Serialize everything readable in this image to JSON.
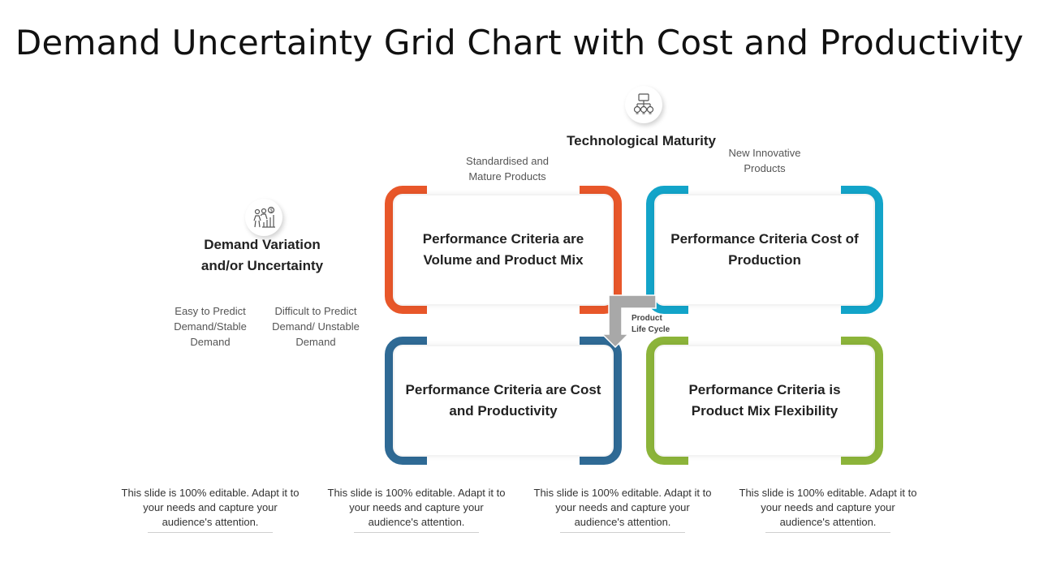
{
  "title": "Demand Uncertainty Grid Chart with Cost and Productivity",
  "tech": {
    "icon": "network-lightbulbs-icon",
    "heading": "Technological Maturity",
    "left_label": "Standardised and Mature Products",
    "right_label": "New Innovative Products"
  },
  "demand": {
    "icon": "people-growth-icon",
    "heading": "Demand Variation and/or Uncertainty",
    "left_label": "Easy to Predict Demand/Stable Demand",
    "right_label": "Difficult to Predict Demand/ Unstable Demand"
  },
  "quadrants": [
    {
      "text": "Performance Criteria are Volume and Product Mix",
      "color": "#e8572a"
    },
    {
      "text": "Performance Criteria Cost of Production",
      "color": "#13a4c9"
    },
    {
      "text": "Performance Criteria are Cost and Productivity",
      "color": "#2f6a95"
    },
    {
      "text": "Performance Criteria is Product Mix Flexibility",
      "color": "#8cb43a"
    }
  ],
  "arrow_label": "Product Life Cycle",
  "footer": [
    "This slide is 100% editable. Adapt it to your needs and capture your audience's attention.",
    "This slide is 100% editable. Adapt it to your needs and capture your audience's attention.",
    "This slide is 100% editable. Adapt it to your needs and capture your audience's attention.",
    "This slide is 100% editable. Adapt it to your needs and capture your audience's attention."
  ]
}
